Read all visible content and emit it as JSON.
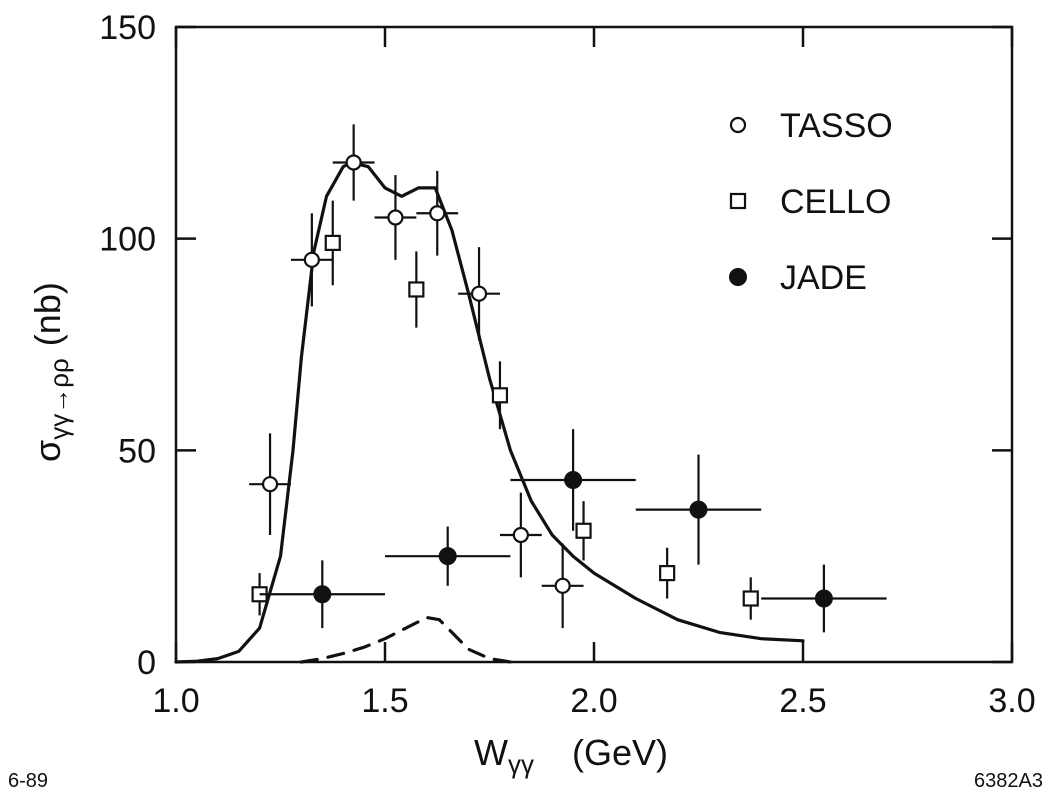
{
  "chart_data": {
    "type": "scatter",
    "title": "",
    "xlabel": {
      "main": "W",
      "sub": "γγ",
      "unit": "(GeV)"
    },
    "ylabel": {
      "main": "σ",
      "sub": "γγ→ρρ",
      "unit": "(nb)"
    },
    "xlim": [
      1.0,
      3.0
    ],
    "ylim": [
      0,
      150
    ],
    "x_ticks": [
      "1.0",
      "1.5",
      "2.0",
      "2.5",
      "3.0"
    ],
    "y_ticks": [
      "0",
      "50",
      "100",
      "150"
    ],
    "grid": false,
    "legend_position": "top-right",
    "series": [
      {
        "name": "TASSO",
        "marker": "open-circle",
        "points": [
          {
            "x": 1.225,
            "y": 42,
            "xerr": 0.05,
            "yerr": 12
          },
          {
            "x": 1.325,
            "y": 95,
            "xerr": 0.05,
            "yerr": 11
          },
          {
            "x": 1.425,
            "y": 118,
            "xerr": 0.05,
            "yerr": 9
          },
          {
            "x": 1.525,
            "y": 105,
            "xerr": 0.05,
            "yerr": 10
          },
          {
            "x": 1.625,
            "y": 106,
            "xerr": 0.05,
            "yerr": 10
          },
          {
            "x": 1.725,
            "y": 87,
            "xerr": 0.05,
            "yerr": 11
          },
          {
            "x": 1.825,
            "y": 30,
            "xerr": 0.05,
            "yerr": 10
          },
          {
            "x": 1.925,
            "y": 18,
            "xerr": 0.05,
            "yerr": 10
          }
        ]
      },
      {
        "name": "CELLO",
        "marker": "open-square",
        "points": [
          {
            "x": 1.2,
            "y": 16,
            "xerr": 0,
            "yerr": 5
          },
          {
            "x": 1.375,
            "y": 99,
            "xerr": 0,
            "yerr": 10
          },
          {
            "x": 1.575,
            "y": 88,
            "xerr": 0,
            "yerr": 9
          },
          {
            "x": 1.775,
            "y": 63,
            "xerr": 0,
            "yerr": 8
          },
          {
            "x": 1.975,
            "y": 31,
            "xerr": 0,
            "yerr": 7
          },
          {
            "x": 2.175,
            "y": 21,
            "xerr": 0,
            "yerr": 6
          },
          {
            "x": 2.375,
            "y": 15,
            "xerr": 0,
            "yerr": 5
          }
        ]
      },
      {
        "name": "JADE",
        "marker": "filled-circle",
        "points": [
          {
            "x": 1.35,
            "y": 16,
            "xerr": 0.15,
            "yerr": 8
          },
          {
            "x": 1.65,
            "y": 25,
            "xerr": 0.15,
            "yerr": 7
          },
          {
            "x": 1.95,
            "y": 43,
            "xerr": 0.15,
            "yerr": 12
          },
          {
            "x": 2.25,
            "y": 36,
            "xerr": 0.15,
            "yerr": 13
          },
          {
            "x": 2.55,
            "y": 15,
            "xerr": 0.15,
            "yerr": 8
          }
        ]
      }
    ],
    "curves": [
      {
        "style": "solid",
        "points": [
          [
            1.0,
            0
          ],
          [
            1.05,
            0.2
          ],
          [
            1.1,
            0.8
          ],
          [
            1.15,
            2.5
          ],
          [
            1.2,
            8
          ],
          [
            1.25,
            25
          ],
          [
            1.28,
            50
          ],
          [
            1.3,
            72
          ],
          [
            1.33,
            97
          ],
          [
            1.36,
            110
          ],
          [
            1.4,
            117
          ],
          [
            1.42,
            118
          ],
          [
            1.46,
            117
          ],
          [
            1.5,
            112
          ],
          [
            1.54,
            110
          ],
          [
            1.58,
            112
          ],
          [
            1.62,
            112
          ],
          [
            1.66,
            102
          ],
          [
            1.7,
            87
          ],
          [
            1.75,
            67
          ],
          [
            1.8,
            50
          ],
          [
            1.85,
            38
          ],
          [
            1.9,
            30
          ],
          [
            1.95,
            25
          ],
          [
            2.0,
            21
          ],
          [
            2.1,
            15
          ],
          [
            2.2,
            10
          ],
          [
            2.3,
            7
          ],
          [
            2.4,
            5.5
          ],
          [
            2.5,
            5
          ]
        ]
      },
      {
        "style": "dashed",
        "points": [
          [
            1.3,
            0
          ],
          [
            1.35,
            0.8
          ],
          [
            1.4,
            2
          ],
          [
            1.45,
            3.5
          ],
          [
            1.5,
            5.5
          ],
          [
            1.55,
            8
          ],
          [
            1.6,
            10.5
          ],
          [
            1.63,
            10
          ],
          [
            1.66,
            7
          ],
          [
            1.7,
            3
          ],
          [
            1.75,
            0.8
          ],
          [
            1.8,
            0
          ]
        ]
      }
    ]
  },
  "corner_left": "6-89",
  "corner_right": "6382A3"
}
